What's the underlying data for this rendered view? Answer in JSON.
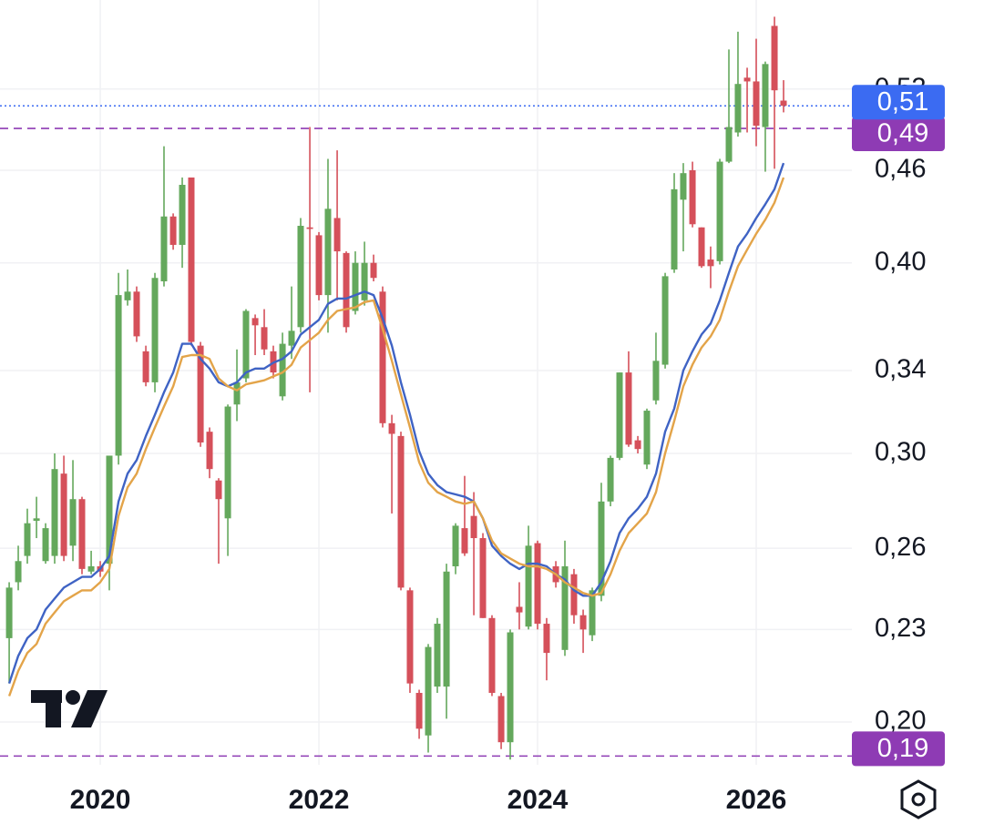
{
  "chart_data": {
    "type": "candlestick",
    "log_scale": true,
    "grid": true,
    "up_color": "#64a85c",
    "down_color": "#d5505a",
    "xlim": [
      2019.083,
      2026.875
    ],
    "xticks": [
      2020,
      2022,
      2024,
      2026
    ],
    "ylim": [
      0.1875,
      0.5948
    ],
    "yticks": [
      {
        "value": 0.2,
        "label": "0,20"
      },
      {
        "value": 0.23,
        "label": "0,23"
      },
      {
        "value": 0.26,
        "label": "0,26"
      },
      {
        "value": 0.3,
        "label": "0,30"
      },
      {
        "value": 0.34,
        "label": "0,34"
      },
      {
        "value": 0.4,
        "label": "0,40"
      },
      {
        "value": 0.46,
        "label": "0,46"
      },
      {
        "value": 0.52,
        "label": "0,52"
      }
    ],
    "x": [
      2019.167,
      2019.25,
      2019.333,
      2019.417,
      2019.5,
      2019.583,
      2019.667,
      2019.75,
      2019.833,
      2019.917,
      2020.0,
      2020.083,
      2020.167,
      2020.25,
      2020.333,
      2020.417,
      2020.5,
      2020.583,
      2020.667,
      2020.75,
      2020.833,
      2020.917,
      2021.0,
      2021.083,
      2021.167,
      2021.25,
      2021.333,
      2021.417,
      2021.5,
      2021.583,
      2021.667,
      2021.75,
      2021.833,
      2021.917,
      2022.0,
      2022.083,
      2022.167,
      2022.25,
      2022.333,
      2022.417,
      2022.5,
      2022.583,
      2022.667,
      2022.75,
      2022.833,
      2022.917,
      2023.0,
      2023.083,
      2023.167,
      2023.25,
      2023.333,
      2023.417,
      2023.5,
      2023.583,
      2023.667,
      2023.75,
      2023.833,
      2023.917,
      2024.0,
      2024.083,
      2024.167,
      2024.25,
      2024.333,
      2024.417,
      2024.5,
      2024.583,
      2024.667,
      2024.75,
      2024.833,
      2024.917,
      2025.0,
      2025.083,
      2025.167,
      2025.25,
      2025.333,
      2025.417,
      2025.5,
      2025.583,
      2025.667,
      2025.75,
      2025.833,
      2025.917,
      2026.0,
      2026.083,
      2026.167,
      2026.25
    ],
    "open": [
      0.227,
      0.247,
      0.257,
      0.271,
      0.255,
      0.257,
      0.291,
      0.261,
      0.28,
      0.251,
      0.253,
      0.254,
      0.299,
      0.378,
      0.383,
      0.35,
      0.334,
      0.389,
      0.429,
      0.411,
      0.455,
      0.353,
      0.31,
      0.288,
      0.272,
      0.323,
      0.336,
      0.368,
      0.363,
      0.35,
      0.327,
      0.353,
      0.363,
      0.422,
      0.417,
      0.381,
      0.428,
      0.406,
      0.372,
      0.378,
      0.4,
      0.383,
      0.314,
      0.308,
      0.244,
      0.209,
      0.196,
      0.211,
      0.211,
      0.253,
      0.268,
      0.273,
      0.264,
      0.234,
      0.208,
      0.194,
      0.238,
      0.231,
      0.262,
      0.232,
      0.253,
      0.223,
      0.25,
      0.235,
      0.228,
      0.242,
      0.279,
      0.298,
      0.339,
      0.306,
      0.295,
      0.325,
      0.343,
      0.396,
      0.44,
      0.46,
      0.422,
      0.402,
      0.401,
      0.466,
      0.487,
      0.529,
      0.526,
      0.491,
      0.572,
      0.511
    ],
    "high": [
      0.247,
      0.261,
      0.276,
      0.281,
      0.27,
      0.3,
      0.299,
      0.297,
      0.281,
      0.259,
      0.255,
      0.299,
      0.394,
      0.396,
      0.386,
      0.353,
      0.394,
      0.477,
      0.431,
      0.455,
      0.455,
      0.355,
      0.312,
      0.289,
      0.323,
      0.351,
      0.373,
      0.37,
      0.373,
      0.353,
      0.36,
      0.386,
      0.428,
      0.491,
      0.419,
      0.468,
      0.474,
      0.407,
      0.407,
      0.413,
      0.405,
      0.386,
      0.318,
      0.31,
      0.245,
      0.21,
      0.225,
      0.234,
      0.254,
      0.27,
      0.29,
      0.283,
      0.266,
      0.235,
      0.209,
      0.23,
      0.247,
      0.269,
      0.263,
      0.234,
      0.255,
      0.263,
      0.252,
      0.237,
      0.245,
      0.287,
      0.299,
      0.339,
      0.35,
      0.308,
      0.321,
      0.36,
      0.394,
      0.458,
      0.465,
      0.466,
      0.422,
      0.41,
      0.468,
      0.552,
      0.567,
      0.537,
      0.561,
      0.542,
      0.58,
      0.527
    ],
    "low": [
      0.212,
      0.244,
      0.254,
      0.264,
      0.254,
      0.254,
      0.255,
      0.255,
      0.25,
      0.25,
      0.249,
      0.244,
      0.295,
      0.375,
      0.355,
      0.332,
      0.329,
      0.386,
      0.408,
      0.397,
      0.353,
      0.303,
      0.289,
      0.254,
      0.257,
      0.315,
      0.334,
      0.348,
      0.348,
      0.336,
      0.325,
      0.346,
      0.36,
      0.329,
      0.378,
      0.36,
      0.378,
      0.36,
      0.37,
      0.375,
      0.389,
      0.312,
      0.274,
      0.244,
      0.209,
      0.195,
      0.191,
      0.209,
      0.201,
      0.25,
      0.257,
      0.235,
      0.234,
      0.208,
      0.192,
      0.189,
      0.23,
      0.23,
      0.23,
      0.213,
      0.245,
      0.221,
      0.232,
      0.222,
      0.226,
      0.24,
      0.277,
      0.297,
      0.303,
      0.3,
      0.293,
      0.323,
      0.341,
      0.394,
      0.407,
      0.422,
      0.397,
      0.385,
      0.399,
      0.465,
      0.484,
      0.487,
      0.477,
      0.459,
      0.461,
      0.502
    ],
    "close": [
      0.245,
      0.255,
      0.27,
      0.272,
      0.268,
      0.293,
      0.257,
      0.28,
      0.252,
      0.253,
      0.251,
      0.299,
      0.381,
      0.383,
      0.358,
      0.334,
      0.391,
      0.429,
      0.411,
      0.45,
      0.355,
      0.305,
      0.293,
      0.28,
      0.322,
      0.334,
      0.372,
      0.364,
      0.351,
      0.339,
      0.354,
      0.361,
      0.423,
      0.421,
      0.381,
      0.434,
      0.407,
      0.363,
      0.4,
      0.4,
      0.391,
      0.314,
      0.309,
      0.245,
      0.212,
      0.198,
      0.224,
      0.232,
      0.251,
      0.269,
      0.258,
      0.264,
      0.234,
      0.209,
      0.194,
      0.229,
      0.236,
      0.261,
      0.232,
      0.222,
      0.247,
      0.253,
      0.235,
      0.23,
      0.244,
      0.279,
      0.298,
      0.339,
      0.304,
      0.302,
      0.32,
      0.345,
      0.392,
      0.447,
      0.458,
      0.424,
      0.398,
      0.398,
      0.466,
      0.491,
      0.524,
      0.526,
      0.492,
      0.54,
      0.519,
      0.507
    ],
    "lines": [
      {
        "color": "#3f63c4",
        "values": [
          0.212,
          0.221,
          0.227,
          0.23,
          0.237,
          0.241,
          0.245,
          0.247,
          0.249,
          0.249,
          0.252,
          0.257,
          0.279,
          0.291,
          0.297,
          0.308,
          0.318,
          0.329,
          0.339,
          0.354,
          0.354,
          0.346,
          0.341,
          0.334,
          0.332,
          0.334,
          0.339,
          0.341,
          0.341,
          0.344,
          0.346,
          0.35,
          0.359,
          0.363,
          0.367,
          0.376,
          0.379,
          0.379,
          0.381,
          0.383,
          0.381,
          0.368,
          0.353,
          0.334,
          0.318,
          0.301,
          0.291,
          0.286,
          0.283,
          0.282,
          0.281,
          0.279,
          0.272,
          0.261,
          0.257,
          0.254,
          0.252,
          0.254,
          0.254,
          0.253,
          0.25,
          0.248,
          0.244,
          0.242,
          0.242,
          0.247,
          0.255,
          0.266,
          0.272,
          0.276,
          0.281,
          0.291,
          0.31,
          0.321,
          0.34,
          0.35,
          0.359,
          0.365,
          0.378,
          0.394,
          0.41,
          0.418,
          0.428,
          0.437,
          0.447,
          0.465
        ]
      },
      {
        "color": "#e3a449",
        "values": [
          0.208,
          0.216,
          0.222,
          0.225,
          0.232,
          0.236,
          0.24,
          0.242,
          0.244,
          0.244,
          0.247,
          0.252,
          0.273,
          0.285,
          0.291,
          0.302,
          0.312,
          0.322,
          0.332,
          0.347,
          0.348,
          0.348,
          0.346,
          0.336,
          0.332,
          0.33,
          0.333,
          0.334,
          0.335,
          0.337,
          0.339,
          0.343,
          0.352,
          0.356,
          0.36,
          0.367,
          0.372,
          0.373,
          0.374,
          0.377,
          0.378,
          0.362,
          0.345,
          0.328,
          0.312,
          0.296,
          0.287,
          0.283,
          0.281,
          0.279,
          0.278,
          0.279,
          0.272,
          0.263,
          0.258,
          0.256,
          0.254,
          0.253,
          0.253,
          0.252,
          0.25,
          0.247,
          0.245,
          0.243,
          0.242,
          0.243,
          0.25,
          0.259,
          0.266,
          0.27,
          0.274,
          0.283,
          0.3,
          0.315,
          0.332,
          0.343,
          0.352,
          0.358,
          0.367,
          0.383,
          0.398,
          0.408,
          0.418,
          0.427,
          0.438,
          0.455
        ]
      }
    ],
    "price_lines": [
      {
        "value": 0.49,
        "label": "0,49",
        "color": "#8e3bb4",
        "style": "dashed"
      },
      {
        "value": 0.19,
        "label": "0,19",
        "color": "#8e3bb4",
        "style": "dashed"
      },
      {
        "value": 0.507,
        "label": "0,51",
        "color": "#3b6bf2",
        "style": "dotted"
      }
    ]
  }
}
